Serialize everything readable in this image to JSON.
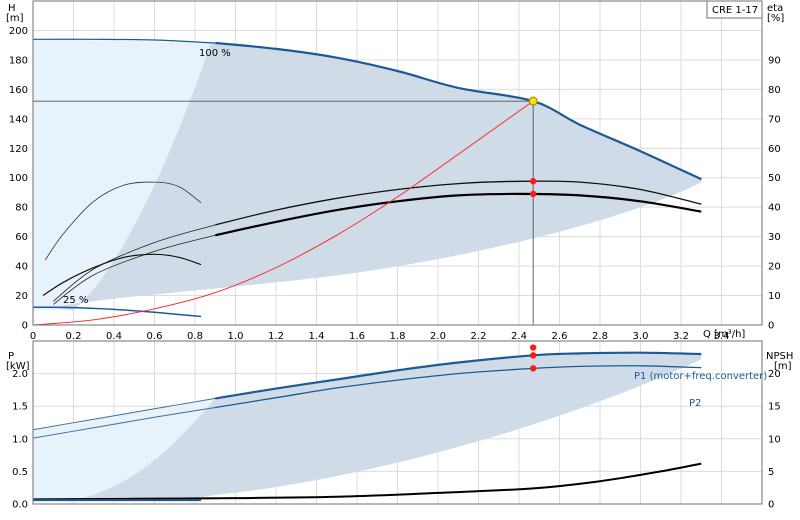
{
  "chart_data": [
    {
      "type": "line",
      "title": "CRE 1-17",
      "y_axis_left": {
        "label_name": "H",
        "label_unit": "[m]",
        "range": [
          0,
          220
        ],
        "ticks": [
          "0",
          "20",
          "40",
          "60",
          "80",
          "100",
          "120",
          "140",
          "160",
          "180",
          "200"
        ]
      },
      "y_axis_right": {
        "label_name": "eta",
        "label_unit": "[%]",
        "range": [
          0,
          110
        ],
        "ticks": [
          "0",
          "10",
          "20",
          "30",
          "40",
          "50",
          "60",
          "70",
          "80",
          "90"
        ]
      },
      "x_axis": {
        "label": "Q [m³/h]",
        "range": [
          0,
          3.6
        ],
        "ticks": [
          "0",
          "0.2",
          "0.4",
          "0.6",
          "0.8",
          "1.0",
          "1.2",
          "1.4",
          "1.6",
          "1.8",
          "2.0",
          "2.2",
          "2.4",
          "2.6",
          "2.8",
          "3.0",
          "3.2",
          "3.4"
        ]
      },
      "annotations": [
        "100 %",
        "25 %"
      ],
      "duty_point": {
        "q": 2.47,
        "h": 152
      },
      "series": [
        {
          "role": "head 100%",
          "x": [
            0,
            0.3,
            0.6,
            0.9,
            1.2,
            1.5,
            1.8,
            2.1,
            2.4,
            2.47,
            2.7,
            3.0,
            3.3
          ],
          "y": [
            194,
            194,
            193.5,
            191.5,
            187.5,
            181.5,
            172.5,
            161,
            150,
            152,
            136,
            118,
            99
          ]
        },
        {
          "role": "head 25%",
          "x": [
            0,
            0.1,
            0.2,
            0.3,
            0.4,
            0.5,
            0.6,
            0.7,
            0.83
          ],
          "y": [
            12,
            12,
            11.8,
            11.3,
            10.6,
            9.7,
            8.6,
            7.4,
            5.8
          ]
        },
        {
          "role": "eta max",
          "x": [
            0.1,
            0.3,
            0.6,
            0.9,
            1.2,
            1.5,
            1.8,
            2.1,
            2.4,
            2.7,
            3.0,
            3.3
          ],
          "y": [
            8,
            19,
            28,
            34,
            39,
            43,
            46,
            48,
            48.8,
            48.5,
            46,
            41
          ]
        },
        {
          "role": "eta",
          "x": [
            0.1,
            0.3,
            0.6,
            0.9,
            1.2,
            1.5,
            1.8,
            2.1,
            2.4,
            2.7,
            3.0,
            3.3
          ],
          "y": [
            7,
            17,
            25,
            30.5,
            35,
            39,
            42,
            44,
            44.5,
            44,
            42,
            38.5
          ]
        },
        {
          "role": "eta small",
          "x": [
            0.05,
            0.15,
            0.3,
            0.45,
            0.6,
            0.72,
            0.83
          ],
          "y": [
            10,
            14.5,
            19.5,
            23,
            24,
            23,
            20.5
          ]
        },
        {
          "role": "eta small upper",
          "x": [
            0.06,
            0.15,
            0.3,
            0.45,
            0.6,
            0.72,
            0.83
          ],
          "y": [
            22,
            31,
            42,
            47.5,
            48.5,
            47,
            41.5
          ]
        },
        {
          "role": "system curve",
          "x": [
            0,
            0.3,
            0.6,
            0.9,
            1.2,
            1.5,
            1.8,
            2.1,
            2.47
          ],
          "y": [
            0,
            3.5,
            11,
            22,
            39,
            61,
            87,
            116,
            152
          ]
        }
      ],
      "markers": [
        {
          "x": 2.47,
          "y": 152,
          "kind": "duty"
        },
        {
          "x": 2.47,
          "y": 48.8,
          "kind": "eta"
        },
        {
          "x": 2.47,
          "y": 44.5,
          "kind": "eta"
        }
      ]
    },
    {
      "type": "line",
      "y_axis_left": {
        "label_name": "P",
        "label_unit": "[kW]",
        "range": [
          0,
          2.5
        ],
        "ticks": [
          "0.0",
          "0.5",
          "1.0",
          "1.5",
          "2.0"
        ]
      },
      "y_axis_right": {
        "label_name": "NPSH",
        "label_unit": "[m]",
        "range": [
          0,
          25
        ],
        "ticks": [
          "0",
          "5",
          "10",
          "15",
          "20"
        ]
      },
      "series": [
        {
          "name": "P1 (motor+freq.converter)",
          "x": [
            0,
            0.3,
            0.6,
            0.9,
            1.2,
            1.5,
            1.8,
            2.1,
            2.47,
            2.7,
            3.0,
            3.3
          ],
          "y": [
            1.14,
            1.3,
            1.46,
            1.62,
            1.77,
            1.91,
            2.05,
            2.17,
            2.28,
            2.31,
            2.32,
            2.3
          ]
        },
        {
          "name": "P2",
          "x": [
            0,
            0.3,
            0.6,
            0.9,
            1.2,
            1.5,
            1.8,
            2.1,
            2.47,
            2.7,
            3.0,
            3.3
          ],
          "y": [
            1.01,
            1.17,
            1.33,
            1.48,
            1.63,
            1.78,
            1.9,
            2.0,
            2.08,
            2.11,
            2.12,
            2.09
          ]
        },
        {
          "role": "NPSH",
          "x": [
            0,
            0.5,
            1.0,
            1.5,
            2.0,
            2.47,
            2.8,
            3.1,
            3.3
          ],
          "y": [
            0.7,
            0.8,
            0.9,
            1.1,
            1.7,
            2.4,
            3.5,
            5.0,
            6.2
          ]
        }
      ],
      "markers": [
        {
          "x": 2.47,
          "y": 2.28,
          "kind": "P1"
        },
        {
          "x": 2.47,
          "y": 2.08,
          "kind": "P2"
        },
        {
          "x": 2.47,
          "y": 2.4,
          "kind": "NPSH"
        }
      ]
    }
  ],
  "colors": {
    "area_dark": "#cfdbe6",
    "area_light": "#e8f2fb",
    "curve_blue": "#1c5a96",
    "thin_blue": "#3f6f9e",
    "system": "#ff2020",
    "marker_red": "#ff1a1a",
    "marker_duty": "#ffdd00",
    "grid": "#dcdcdc",
    "guide": "#555555"
  }
}
